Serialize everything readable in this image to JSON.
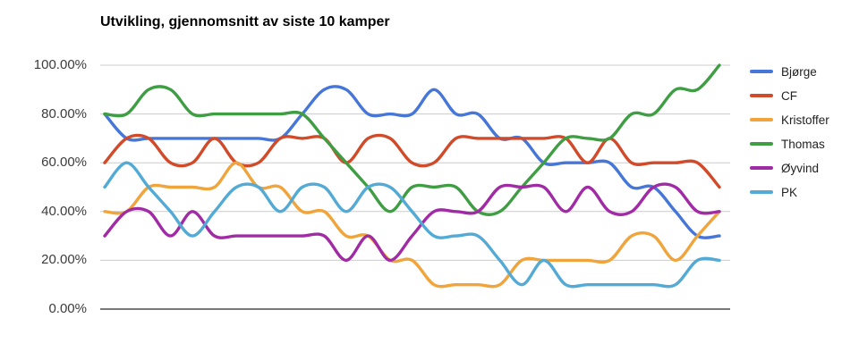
{
  "title": "Utvikling, gjennomsnitt av siste 10 kamper",
  "chart_data": {
    "type": "line",
    "title": "Utvikling, gjennomsnitt av siste 10 kamper",
    "curve": "smooth",
    "grid": true,
    "legend_position": "right",
    "xlabel": "",
    "ylabel": "",
    "ylim": [
      0,
      100
    ],
    "y_ticks": [
      "100.00%",
      "80.00%",
      "60.00%",
      "40.00%",
      "20.00%",
      "0.00%"
    ],
    "y_grid_values": [
      100,
      80,
      60,
      40,
      20,
      0
    ],
    "point_count": 29,
    "series": [
      {
        "name": "Bjørge",
        "color": "#4677d8",
        "values": [
          80,
          70,
          70,
          70,
          70,
          70,
          70,
          70,
          70,
          80,
          90,
          90,
          80,
          80,
          80,
          90,
          80,
          80,
          70,
          70,
          60,
          60,
          60,
          60,
          50,
          50,
          40,
          30,
          30
        ]
      },
      {
        "name": "CF",
        "color": "#d14a2a",
        "values": [
          60,
          70,
          70,
          60,
          60,
          70,
          60,
          60,
          70,
          70,
          70,
          60,
          70,
          70,
          60,
          60,
          70,
          70,
          70,
          70,
          70,
          70,
          60,
          70,
          60,
          60,
          60,
          60,
          50
        ]
      },
      {
        "name": "Kristoffer",
        "color": "#f0a43c",
        "values": [
          40,
          40,
          50,
          50,
          50,
          50,
          60,
          50,
          50,
          40,
          40,
          30,
          30,
          20,
          20,
          10,
          10,
          10,
          10,
          20,
          20,
          20,
          20,
          20,
          30,
          30,
          20,
          30,
          40
        ]
      },
      {
        "name": "Thomas",
        "color": "#3f9e43",
        "values": [
          80,
          80,
          90,
          90,
          80,
          80,
          80,
          80,
          80,
          80,
          70,
          60,
          50,
          40,
          50,
          50,
          50,
          40,
          40,
          50,
          60,
          70,
          70,
          70,
          80,
          80,
          90,
          90,
          100
        ]
      },
      {
        "name": "Øyvind",
        "color": "#a02ba5",
        "values": [
          30,
          40,
          40,
          30,
          40,
          30,
          30,
          30,
          30,
          30,
          30,
          20,
          30,
          20,
          30,
          40,
          40,
          40,
          50,
          50,
          50,
          40,
          50,
          40,
          40,
          50,
          50,
          40,
          40
        ]
      },
      {
        "name": "PK",
        "color": "#52aad5",
        "values": [
          50,
          60,
          50,
          40,
          30,
          40,
          50,
          50,
          40,
          50,
          50,
          40,
          50,
          50,
          40,
          30,
          30,
          30,
          20,
          10,
          20,
          10,
          10,
          10,
          10,
          10,
          10,
          20,
          20
        ]
      }
    ],
    "colors": {
      "gridline": "#cccccc",
      "baseline": "#4d4d4d",
      "title_text": "#000000",
      "axis_text": "#3c3c3c",
      "legend_text": "#222222",
      "background": "#ffffff"
    }
  }
}
